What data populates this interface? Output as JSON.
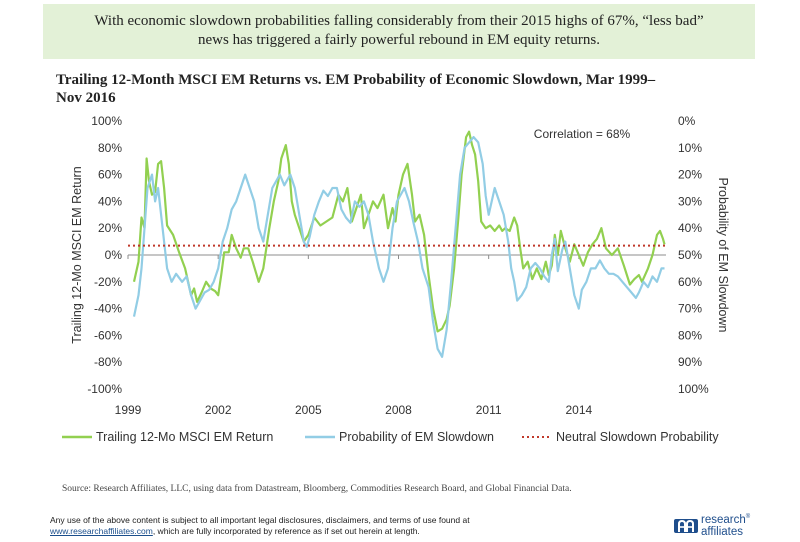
{
  "banner": {
    "line1": "With economic slowdown probabilities falling considerably from their 2015 highs of 67%, “less bad”",
    "line2": "news has triggered a fairly powerful rebound in EM equity returns."
  },
  "chart_title": {
    "line1": "Trailing 12-Month MSCI EM Returns vs. EM Probability of Economic Slowdown, Mar 1999–",
    "line2": "Nov 2016"
  },
  "footer": {
    "source": "Source: Research Affiliates, LLC, using data from Datastream, Bloomberg, Commodities Research Board, and Global Financial Data.",
    "disclaimer_line1": "Any use of the above content is subject to all important legal disclosures, disclaimers, and terms of use found at",
    "disclaimer_link": "www.researchaffiliates.com",
    "disclaimer_line2_rest": ", which are fully incorporated by reference as if set out herein at length.",
    "logo_line1": "research",
    "logo_line2": "affiliates",
    "logo_tm": "®"
  },
  "chart_data": {
    "type": "line",
    "x_ticks": [
      "1999",
      "2002",
      "2005",
      "2008",
      "2011",
      "2014"
    ],
    "xlim": [
      1999.0,
      2016.9
    ],
    "y_left_ticks": [
      "100%",
      "80%",
      "60%",
      "40%",
      "20%",
      "0%",
      "-20%",
      "-40%",
      "-60%",
      "-80%",
      "-100%"
    ],
    "y_right_ticks": [
      "0%",
      "10%",
      "20%",
      "30%",
      "40%",
      "50%",
      "60%",
      "70%",
      "80%",
      "90%",
      "100%"
    ],
    "ylim_left": [
      -100,
      100
    ],
    "ylim_right": [
      100,
      0
    ],
    "ylabel_left": "Trailing 12-Mo MSCI EM Return",
    "ylabel_right": "Probability of EM Slowdown",
    "annotation": "Correlation = 68%",
    "grid": false,
    "legend_position": "bottom",
    "series": [
      {
        "name": "Trailing 12-Mo MSCI EM Return",
        "axis": "left",
        "color": "#92d050",
        "points": [
          [
            1999.2,
            -20
          ],
          [
            1999.35,
            -5
          ],
          [
            1999.45,
            28
          ],
          [
            1999.55,
            20
          ],
          [
            1999.62,
            72
          ],
          [
            1999.7,
            55
          ],
          [
            1999.8,
            45
          ],
          [
            1999.9,
            47
          ],
          [
            2000.0,
            68
          ],
          [
            2000.1,
            70
          ],
          [
            2000.2,
            50
          ],
          [
            2000.3,
            22
          ],
          [
            2000.5,
            15
          ],
          [
            2000.7,
            2
          ],
          [
            2000.9,
            -10
          ],
          [
            2001.0,
            -20
          ],
          [
            2001.1,
            -30
          ],
          [
            2001.2,
            -25
          ],
          [
            2001.3,
            -35
          ],
          [
            2001.45,
            -28
          ],
          [
            2001.6,
            -20
          ],
          [
            2001.75,
            -25
          ],
          [
            2001.9,
            -27
          ],
          [
            2002.0,
            -30
          ],
          [
            2002.1,
            -15
          ],
          [
            2002.2,
            2
          ],
          [
            2002.35,
            2
          ],
          [
            2002.45,
            15
          ],
          [
            2002.6,
            5
          ],
          [
            2002.75,
            -2
          ],
          [
            2002.85,
            5
          ],
          [
            2003.0,
            5
          ],
          [
            2003.15,
            -5
          ],
          [
            2003.35,
            -20
          ],
          [
            2003.5,
            -10
          ],
          [
            2003.7,
            20
          ],
          [
            2003.85,
            40
          ],
          [
            2004.0,
            55
          ],
          [
            2004.1,
            72
          ],
          [
            2004.25,
            82
          ],
          [
            2004.35,
            68
          ],
          [
            2004.45,
            40
          ],
          [
            2004.55,
            30
          ],
          [
            2004.7,
            20
          ],
          [
            2004.85,
            10
          ],
          [
            2005.0,
            15
          ],
          [
            2005.2,
            28
          ],
          [
            2005.4,
            22
          ],
          [
            2005.6,
            25
          ],
          [
            2005.8,
            28
          ],
          [
            2006.0,
            45
          ],
          [
            2006.15,
            40
          ],
          [
            2006.3,
            50
          ],
          [
            2006.45,
            25
          ],
          [
            2006.6,
            35
          ],
          [
            2006.75,
            45
          ],
          [
            2006.85,
            20
          ],
          [
            2007.0,
            30
          ],
          [
            2007.15,
            40
          ],
          [
            2007.3,
            35
          ],
          [
            2007.5,
            45
          ],
          [
            2007.65,
            20
          ],
          [
            2007.8,
            35
          ],
          [
            2007.9,
            25
          ],
          [
            2008.0,
            45
          ],
          [
            2008.15,
            60
          ],
          [
            2008.3,
            68
          ],
          [
            2008.45,
            45
          ],
          [
            2008.55,
            25
          ],
          [
            2008.7,
            30
          ],
          [
            2008.85,
            15
          ],
          [
            2009.0,
            -15
          ],
          [
            2009.15,
            -40
          ],
          [
            2009.3,
            -57
          ],
          [
            2009.45,
            -55
          ],
          [
            2009.6,
            -48
          ],
          [
            2009.7,
            -38
          ],
          [
            2009.85,
            -10
          ],
          [
            2010.0,
            30
          ],
          [
            2010.1,
            60
          ],
          [
            2010.25,
            88
          ],
          [
            2010.35,
            92
          ],
          [
            2010.45,
            82
          ],
          [
            2010.55,
            75
          ],
          [
            2010.65,
            55
          ],
          [
            2010.75,
            25
          ],
          [
            2010.9,
            20
          ],
          [
            2011.05,
            22
          ],
          [
            2011.2,
            18
          ],
          [
            2011.35,
            22
          ],
          [
            2011.45,
            18
          ],
          [
            2011.55,
            20
          ],
          [
            2011.7,
            18
          ],
          [
            2011.85,
            28
          ],
          [
            2011.95,
            22
          ],
          [
            2012.05,
            5
          ],
          [
            2012.15,
            -10
          ],
          [
            2012.3,
            -5
          ],
          [
            2012.45,
            -18
          ],
          [
            2012.6,
            -10
          ],
          [
            2012.75,
            -18
          ],
          [
            2012.9,
            -5
          ],
          [
            2013.0,
            -15
          ],
          [
            2013.1,
            -8
          ],
          [
            2013.2,
            15
          ],
          [
            2013.3,
            0
          ],
          [
            2013.4,
            18
          ],
          [
            2013.55,
            5
          ],
          [
            2013.7,
            -5
          ],
          [
            2013.85,
            8
          ],
          [
            2014.0,
            0
          ],
          [
            2014.15,
            -8
          ],
          [
            2014.3,
            2
          ],
          [
            2014.45,
            8
          ],
          [
            2014.6,
            12
          ],
          [
            2014.75,
            20
          ],
          [
            2014.9,
            5
          ],
          [
            2015.1,
            0
          ],
          [
            2015.3,
            5
          ],
          [
            2015.5,
            -8
          ],
          [
            2015.7,
            -22
          ],
          [
            2015.85,
            -18
          ],
          [
            2016.0,
            -15
          ],
          [
            2016.1,
            -20
          ],
          [
            2016.3,
            -10
          ],
          [
            2016.45,
            0
          ],
          [
            2016.6,
            15
          ],
          [
            2016.7,
            18
          ],
          [
            2016.8,
            12
          ],
          [
            2016.85,
            8
          ]
        ]
      },
      {
        "name": "Probability of EM Slowdown",
        "axis": "right",
        "color": "#92cde5",
        "points": [
          [
            1999.2,
            73
          ],
          [
            1999.35,
            65
          ],
          [
            1999.45,
            55
          ],
          [
            1999.55,
            40
          ],
          [
            1999.65,
            25
          ],
          [
            1999.8,
            20
          ],
          [
            1999.9,
            30
          ],
          [
            2000.0,
            25
          ],
          [
            2000.15,
            40
          ],
          [
            2000.3,
            55
          ],
          [
            2000.45,
            60
          ],
          [
            2000.6,
            57
          ],
          [
            2000.8,
            60
          ],
          [
            2000.95,
            58
          ],
          [
            2001.1,
            65
          ],
          [
            2001.25,
            70
          ],
          [
            2001.4,
            67
          ],
          [
            2001.55,
            64
          ],
          [
            2001.7,
            63
          ],
          [
            2001.85,
            60
          ],
          [
            2002.0,
            55
          ],
          [
            2002.15,
            45
          ],
          [
            2002.3,
            40
          ],
          [
            2002.45,
            33
          ],
          [
            2002.6,
            30
          ],
          [
            2002.75,
            25
          ],
          [
            2002.9,
            20
          ],
          [
            2003.05,
            25
          ],
          [
            2003.2,
            30
          ],
          [
            2003.35,
            40
          ],
          [
            2003.5,
            45
          ],
          [
            2003.65,
            35
          ],
          [
            2003.8,
            25
          ],
          [
            2003.95,
            22
          ],
          [
            2004.05,
            20
          ],
          [
            2004.2,
            24
          ],
          [
            2004.4,
            20
          ],
          [
            2004.55,
            25
          ],
          [
            2004.7,
            35
          ],
          [
            2004.85,
            45
          ],
          [
            2004.95,
            47
          ],
          [
            2005.05,
            43
          ],
          [
            2005.2,
            35
          ],
          [
            2005.35,
            30
          ],
          [
            2005.5,
            26
          ],
          [
            2005.65,
            28
          ],
          [
            2005.8,
            25
          ],
          [
            2005.95,
            25
          ],
          [
            2006.1,
            33
          ],
          [
            2006.25,
            36
          ],
          [
            2006.4,
            38
          ],
          [
            2006.55,
            30
          ],
          [
            2006.7,
            32
          ],
          [
            2006.85,
            30
          ],
          [
            2007.0,
            35
          ],
          [
            2007.15,
            45
          ],
          [
            2007.35,
            55
          ],
          [
            2007.5,
            60
          ],
          [
            2007.65,
            55
          ],
          [
            2007.8,
            40
          ],
          [
            2007.95,
            30
          ],
          [
            2008.05,
            28
          ],
          [
            2008.2,
            25
          ],
          [
            2008.35,
            30
          ],
          [
            2008.5,
            38
          ],
          [
            2008.65,
            45
          ],
          [
            2008.8,
            55
          ],
          [
            2009.0,
            62
          ],
          [
            2009.15,
            75
          ],
          [
            2009.3,
            85
          ],
          [
            2009.45,
            88
          ],
          [
            2009.6,
            78
          ],
          [
            2009.75,
            60
          ],
          [
            2009.9,
            40
          ],
          [
            2010.05,
            20
          ],
          [
            2010.2,
            10
          ],
          [
            2010.35,
            8
          ],
          [
            2010.5,
            6
          ],
          [
            2010.65,
            8
          ],
          [
            2010.8,
            16
          ],
          [
            2010.9,
            28
          ],
          [
            2011.0,
            35
          ],
          [
            2011.1,
            30
          ],
          [
            2011.2,
            25
          ],
          [
            2011.35,
            30
          ],
          [
            2011.5,
            35
          ],
          [
            2011.65,
            45
          ],
          [
            2011.75,
            55
          ],
          [
            2011.85,
            60
          ],
          [
            2011.95,
            67
          ],
          [
            2012.1,
            65
          ],
          [
            2012.25,
            62
          ],
          [
            2012.4,
            55
          ],
          [
            2012.55,
            53
          ],
          [
            2012.7,
            55
          ],
          [
            2012.85,
            58
          ],
          [
            2013.0,
            60
          ],
          [
            2013.1,
            50
          ],
          [
            2013.2,
            44
          ],
          [
            2013.3,
            56
          ],
          [
            2013.45,
            48
          ],
          [
            2013.55,
            45
          ],
          [
            2013.7,
            55
          ],
          [
            2013.85,
            65
          ],
          [
            2014.0,
            70
          ],
          [
            2014.1,
            63
          ],
          [
            2014.25,
            60
          ],
          [
            2014.4,
            55
          ],
          [
            2014.55,
            55
          ],
          [
            2014.7,
            52
          ],
          [
            2014.85,
            55
          ],
          [
            2015.0,
            57
          ],
          [
            2015.15,
            57
          ],
          [
            2015.3,
            58
          ],
          [
            2015.45,
            60
          ],
          [
            2015.6,
            62
          ],
          [
            2015.75,
            64
          ],
          [
            2015.9,
            66
          ],
          [
            2016.0,
            64
          ],
          [
            2016.15,
            60
          ],
          [
            2016.3,
            62
          ],
          [
            2016.45,
            58
          ],
          [
            2016.6,
            60
          ],
          [
            2016.75,
            55
          ],
          [
            2016.85,
            55
          ]
        ]
      },
      {
        "name": "Neutral Slowdown Probability",
        "axis": "left",
        "color": "#c0392b",
        "style": "dotted",
        "constant": 7
      }
    ]
  }
}
